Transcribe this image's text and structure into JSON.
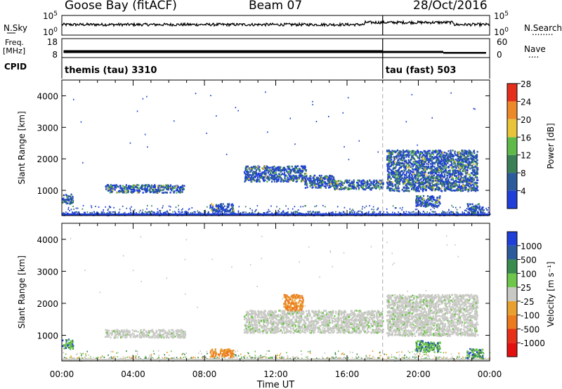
{
  "header": {
    "station": "Goose Bay (fitACF)",
    "beam": "Beam 07",
    "date": "28/Oct/2016"
  },
  "top_panels": {
    "nsky_label": "N.Sky",
    "nsky_ticks": [
      "10^5",
      "10^0"
    ],
    "nsearch_label": "N.Search",
    "nsearch_ticks": [
      "10^5",
      "10^0"
    ],
    "nsearch_line": "........",
    "freq_label": "Freq.",
    "freq_unit": "[MHz]",
    "freq_ticks": [
      "18",
      "8"
    ],
    "nave_label": "Nave",
    "nave_ticks": [
      "60",
      "0"
    ],
    "nave_line": "....",
    "cpid_label": "CPID",
    "cpid_modes": [
      {
        "name": "themis (tau) 3310",
        "start_hour": 0
      },
      {
        "name": "tau (fast) 503",
        "start_hour": 18
      }
    ]
  },
  "chart_data": [
    {
      "type": "heatmap",
      "name": "power",
      "xlabel": "",
      "ylabel": "Slant Range [km]",
      "xlim": [
        0,
        24
      ],
      "ylim": [
        200,
        4500
      ],
      "yticks": [
        1000,
        2000,
        3000,
        4000
      ],
      "colorbar_label": "Power [dB]",
      "colorbar_levels": [
        4,
        8,
        12,
        16,
        20,
        24,
        28
      ],
      "colorbar_colors": [
        "#1f3fd8",
        "#2c5a9a",
        "#3b7f56",
        "#5fba4a",
        "#e8c43a",
        "#ec8a2a",
        "#e42f1c"
      ],
      "features": [
        {
          "t0": 0.0,
          "t1": 0.6,
          "r0": 600,
          "r1": 900,
          "level": "mixed"
        },
        {
          "t0": 2.4,
          "t1": 6.9,
          "r0": 950,
          "r1": 1200,
          "level": "mixed"
        },
        {
          "t0": 8.3,
          "t1": 9.6,
          "r0": 350,
          "r1": 600,
          "level": "mixed"
        },
        {
          "t0": 10.2,
          "t1": 13.7,
          "r0": 1300,
          "r1": 1800,
          "level": "mixed"
        },
        {
          "t0": 13.6,
          "t1": 15.3,
          "r0": 1100,
          "r1": 1500,
          "level": "mixed"
        },
        {
          "t0": 15.2,
          "t1": 18.0,
          "r0": 1050,
          "r1": 1350,
          "level": "mixed"
        },
        {
          "t0": 18.2,
          "t1": 23.3,
          "r0": 1000,
          "r1": 2300,
          "level": "mixed"
        },
        {
          "t0": 19.8,
          "t1": 21.2,
          "r0": 500,
          "r1": 850,
          "level": "mixed"
        },
        {
          "t0": 22.7,
          "t1": 23.6,
          "r0": 300,
          "r1": 600,
          "level": "mixed"
        }
      ]
    },
    {
      "type": "heatmap",
      "name": "velocity",
      "xlabel": "Time UT",
      "ylabel": "Slant Range [km]",
      "xlim": [
        0,
        24
      ],
      "ylim": [
        200,
        4500
      ],
      "xticks": [
        "00:00",
        "04:00",
        "08:00",
        "12:00",
        "16:00",
        "20:00",
        "00:00"
      ],
      "yticks": [
        1000,
        2000,
        3000,
        4000
      ],
      "colorbar_label": "Velocity [m s⁻¹]",
      "colorbar_levels": [
        1000,
        500,
        100,
        25,
        -25,
        -100,
        -500,
        -1000
      ],
      "colorbar_colors": [
        "#1f3fd8",
        "#2c5a9a",
        "#3b8a4e",
        "#6ec64a",
        "#c8c8c4",
        "#e8a030",
        "#ec7a1e",
        "#e63018",
        "#e41010"
      ],
      "features": [
        {
          "t0": 0.0,
          "t1": 0.6,
          "r0": 600,
          "r1": 900,
          "level": "positive"
        },
        {
          "t0": 2.4,
          "t1": 6.9,
          "r0": 950,
          "r1": 1200,
          "level": "near-zero"
        },
        {
          "t0": 8.3,
          "t1": 9.6,
          "r0": 350,
          "r1": 600,
          "level": "negative"
        },
        {
          "t0": 10.2,
          "t1": 18.0,
          "r0": 1100,
          "r1": 1800,
          "level": "near-zero"
        },
        {
          "t0": 12.4,
          "t1": 13.5,
          "r0": 1800,
          "r1": 2300,
          "level": "negative"
        },
        {
          "t0": 18.2,
          "t1": 23.3,
          "r0": 1000,
          "r1": 2300,
          "level": "near-zero"
        },
        {
          "t0": 19.8,
          "t1": 21.2,
          "r0": 500,
          "r1": 850,
          "level": "positive"
        },
        {
          "t0": 22.7,
          "t1": 23.6,
          "r0": 300,
          "r1": 600,
          "level": "positive"
        }
      ]
    }
  ]
}
